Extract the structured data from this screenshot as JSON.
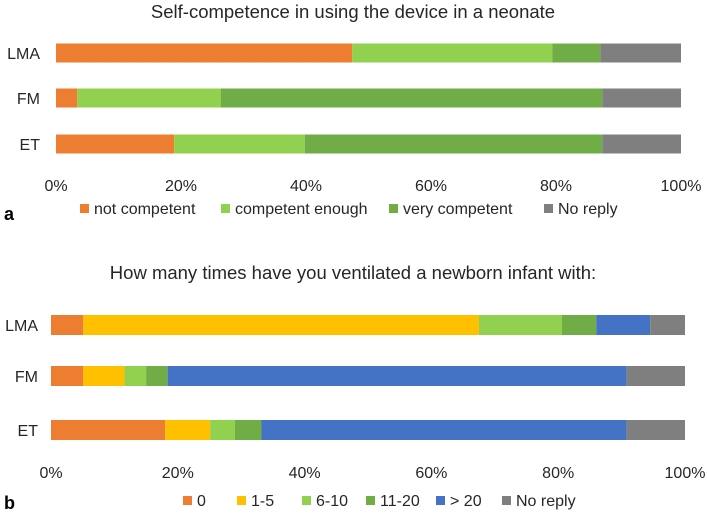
{
  "colors": {
    "orange": "#ED7D31",
    "yellow": "#FFC000",
    "light_green": "#92D050",
    "green": "#70AD47",
    "blue": "#4472C4",
    "gray": "#7F7F7F",
    "text": "#262626"
  },
  "chart_data": [
    {
      "type": "bar",
      "orientation": "horizontal",
      "stacked": true,
      "percent_stacked": true,
      "panel": "a",
      "title": "Self-competence in using the device in a neonate",
      "categories": [
        "LMA",
        "FM",
        "ET"
      ],
      "series": [
        {
          "name": "not competent",
          "color": "#ED7D31",
          "values": [
            47.4,
            3.4,
            18.9
          ]
        },
        {
          "name": "competent enough",
          "color": "#92D050",
          "values": [
            32.0,
            23.0,
            20.9
          ]
        },
        {
          "name": "very competent",
          "color": "#70AD47",
          "values": [
            7.7,
            61.0,
            47.6
          ]
        },
        {
          "name": "No reply",
          "color": "#7F7F7F",
          "values": [
            12.9,
            12.6,
            12.6
          ]
        }
      ],
      "x_ticks": [
        "0%",
        "20%",
        "40%",
        "60%",
        "80%",
        "100%"
      ],
      "xlim": [
        0,
        100
      ],
      "grid": false,
      "legend_position": "bottom"
    },
    {
      "type": "bar",
      "orientation": "horizontal",
      "stacked": true,
      "percent_stacked": true,
      "panel": "b",
      "title": "How many times have you ventilated a newborn infant with:",
      "categories": [
        "LMA",
        "FM",
        "ET"
      ],
      "series": [
        {
          "name": "0",
          "color": "#ED7D31",
          "values": [
            5.1,
            5.1,
            18.0
          ]
        },
        {
          "name": "1-5",
          "color": "#FFC000",
          "values": [
            62.4,
            6.5,
            7.1
          ]
        },
        {
          "name": "6-10",
          "color": "#92D050",
          "values": [
            13.1,
            3.4,
            3.9
          ]
        },
        {
          "name": "11-20",
          "color": "#70AD47",
          "values": [
            5.4,
            3.4,
            4.2
          ]
        },
        {
          "name": "> 20",
          "color": "#4472C4",
          "values": [
            8.5,
            72.4,
            57.6
          ]
        },
        {
          "name": "No reply",
          "color": "#7F7F7F",
          "values": [
            5.5,
            9.2,
            9.2
          ]
        }
      ],
      "x_ticks": [
        "0%",
        "20%",
        "40%",
        "60%",
        "80%",
        "100%"
      ],
      "xlim": [
        0,
        100
      ],
      "grid": false,
      "legend_position": "bottom"
    }
  ]
}
